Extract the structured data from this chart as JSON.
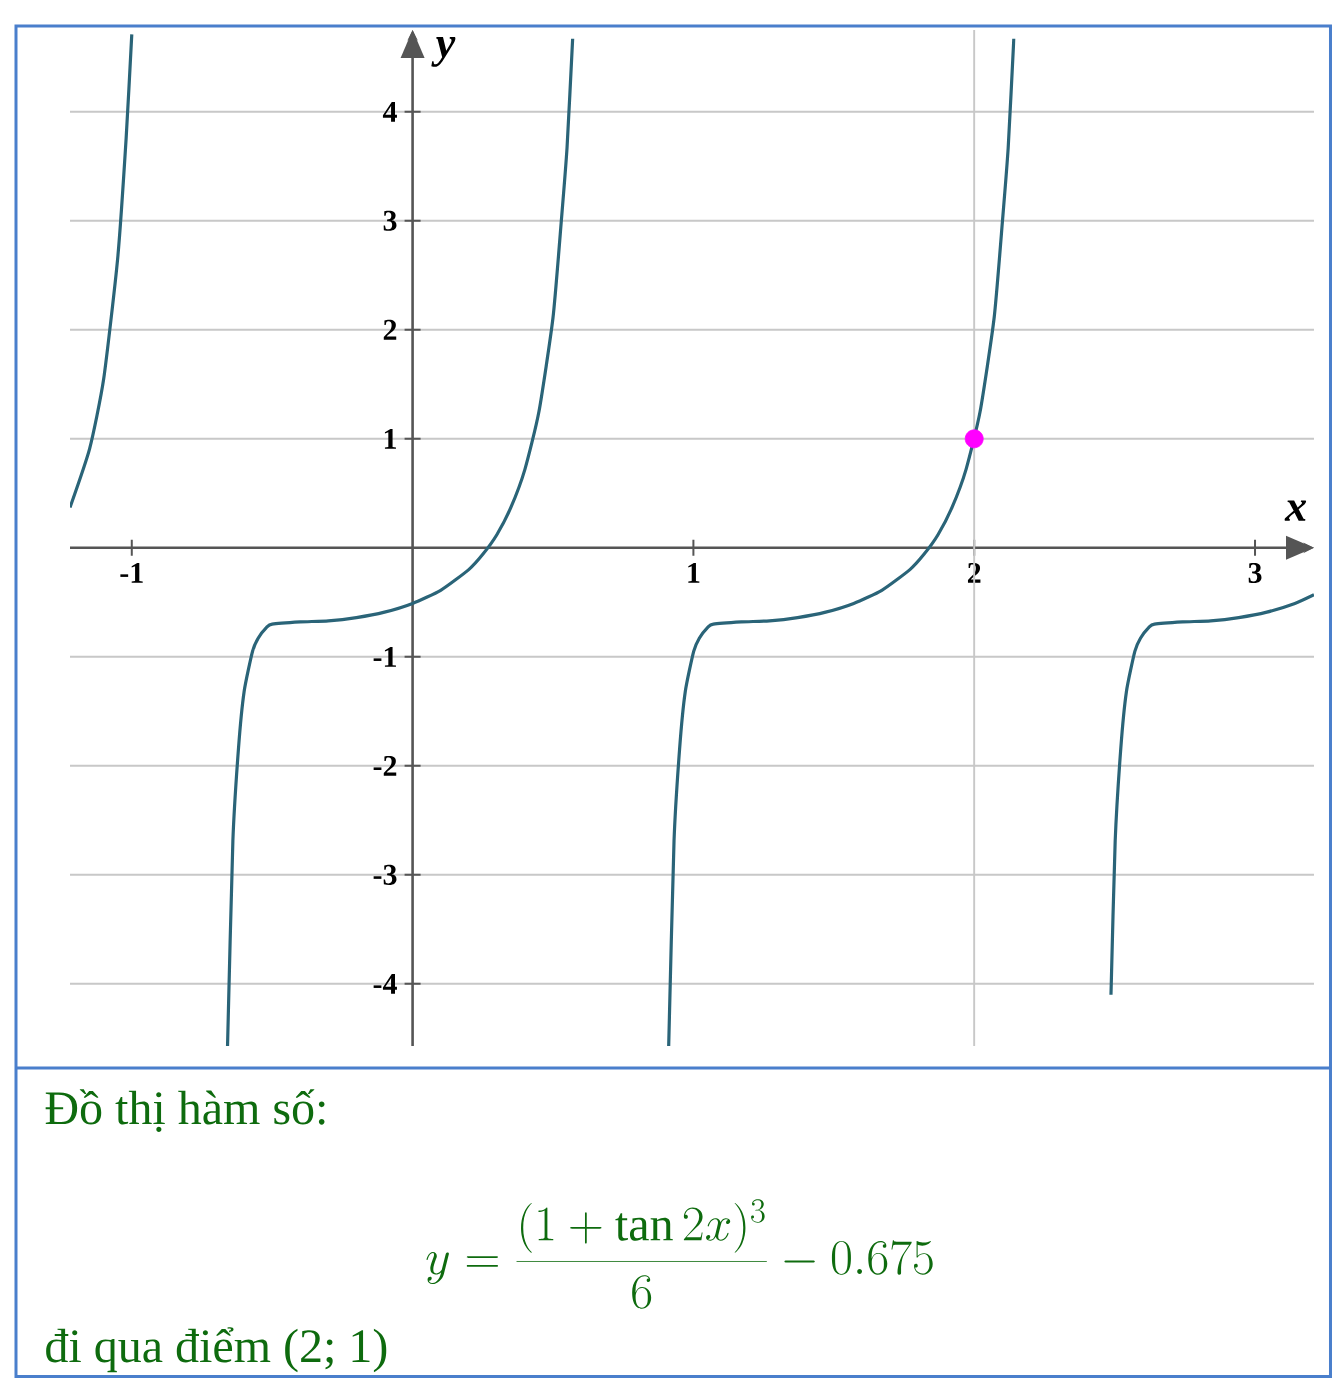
{
  "chart_data": {
    "type": "line",
    "xlabel": "x",
    "ylabel": "y",
    "xlim": [
      -1.22,
      3.21
    ],
    "ylim": [
      -4.57,
      4.75
    ],
    "xticks": [
      -1,
      1,
      2,
      3
    ],
    "yticks": [
      -4,
      -3,
      -2,
      -1,
      1,
      2,
      3,
      4
    ],
    "grid": "y",
    "ref_lines": [
      {
        "axis": "x",
        "value": 2,
        "color": "#c8c8c8"
      }
    ],
    "annotations": [
      "Đồ thị hàm số:",
      "y=\\frac{(1+\\tan 2x)^3}{6}-0.675",
      "đi qua điểm (2; 1)"
    ],
    "series": [
      {
        "color": "#2a6478",
        "x": [
          -1.22,
          -1.15,
          -1.1,
          -1.05,
          -1.02,
          -1.0
        ],
        "values": [
          0.37,
          0.91,
          1.55,
          2.66,
          3.76,
          4.71
        ]
      },
      {
        "color": "#2a6478",
        "x": [
          -0.659,
          -0.64,
          -0.62,
          -0.6,
          -0.57,
          -0.55,
          -0.52,
          -0.5,
          -0.4,
          -0.3,
          -0.2,
          -0.1,
          0,
          0.1,
          0.2,
          0.25,
          0.3,
          0.35,
          0.4,
          0.45,
          0.5,
          0.53,
          0.55,
          0.57
        ],
        "values": [
          -4.57,
          -2.69,
          -1.84,
          -1.32,
          -0.95,
          -0.83,
          -0.73,
          -0.7,
          -0.68,
          -0.67,
          -0.64,
          -0.59,
          -0.51,
          -0.39,
          -0.2,
          -0.06,
          0.12,
          0.37,
          0.72,
          1.25,
          2.11,
          3.01,
          3.67,
          4.67
        ]
      },
      {
        "color": "#2a6478",
        "x": [
          0.912,
          0.931,
          0.951,
          0.971,
          1.001,
          1.021,
          1.051,
          1.071,
          1.171,
          1.271,
          1.371,
          1.471,
          1.571,
          1.671,
          1.771,
          1.821,
          1.871,
          1.921,
          1.971,
          2.021,
          2.071,
          2.101,
          2.121,
          2.141
        ],
        "values": [
          -4.57,
          -2.69,
          -1.84,
          -1.32,
          -0.95,
          -0.83,
          -0.73,
          -0.7,
          -0.68,
          -0.67,
          -0.64,
          -0.59,
          -0.51,
          -0.39,
          -0.2,
          -0.06,
          0.12,
          0.37,
          0.72,
          1.25,
          2.11,
          3.01,
          3.67,
          4.67
        ]
      },
      {
        "color": "#2a6478",
        "x": [
          2.487,
          2.502,
          2.522,
          2.542,
          2.572,
          2.592,
          2.622,
          2.642,
          2.742,
          2.842,
          2.942,
          3.042,
          3.142,
          3.21
        ],
        "values": [
          -4.1,
          -2.69,
          -1.84,
          -1.32,
          -0.95,
          -0.83,
          -0.73,
          -0.7,
          -0.68,
          -0.67,
          -0.64,
          -0.59,
          -0.51,
          -0.43
        ]
      },
      {
        "type": "scatter",
        "color": "#ff00ff",
        "marker": "circle",
        "x": [
          2
        ],
        "values": [
          1
        ]
      }
    ]
  }
}
